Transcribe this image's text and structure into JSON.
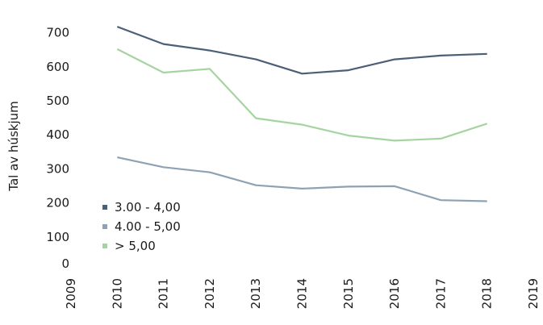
{
  "chart_data": {
    "type": "line",
    "title": "",
    "xlabel": "",
    "ylabel": "Tal av húskjum",
    "x": [
      "2009",
      "2010",
      "2011",
      "2012",
      "2013",
      "2014",
      "2015",
      "2016",
      "2017",
      "2018",
      "2019"
    ],
    "y_ticks": [
      "0",
      "100",
      "200",
      "300",
      "400",
      "500",
      "600",
      "700"
    ],
    "ylim": [
      0,
      720
    ],
    "grid": false,
    "legend_position": "bottom-left",
    "series": [
      {
        "name": "3.00 - 4,00",
        "color": "#4a5f78",
        "values": [
          null,
          718,
          667,
          648,
          622,
          580,
          590,
          622,
          633,
          638,
          null
        ]
      },
      {
        "name": "4.00 - 5,00",
        "color": "#8ea2b4",
        "values": [
          null,
          334,
          305,
          290,
          252,
          242,
          248,
          249,
          208,
          205,
          null
        ]
      },
      {
        "name": "> 5,00",
        "color": "#a6d4a0",
        "values": [
          null,
          652,
          583,
          594,
          449,
          430,
          398,
          383,
          389,
          433,
          null
        ]
      }
    ]
  }
}
